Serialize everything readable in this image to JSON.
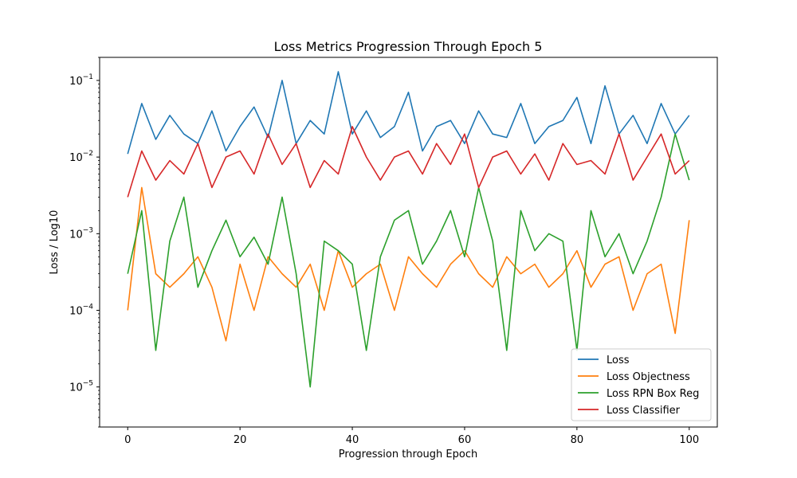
{
  "chart_data": {
    "type": "line",
    "title": "Loss Metrics Progression Through Epoch 5",
    "xlabel": "Progression through Epoch",
    "ylabel": "Loss / Log10",
    "yscale": "log",
    "xlim": [
      -5,
      105
    ],
    "ylim": [
      3e-06,
      0.2
    ],
    "grid": false,
    "legend_position": "lower-right",
    "xticks": [
      0,
      20,
      40,
      60,
      80,
      100
    ],
    "xtick_labels": [
      "0",
      "20",
      "40",
      "60",
      "80",
      "100"
    ],
    "yticks": [
      1e-05,
      0.0001,
      0.001,
      0.01,
      0.1
    ],
    "ytick_labels": [
      {
        "base": "10",
        "exp": "−5"
      },
      {
        "base": "10",
        "exp": "−4"
      },
      {
        "base": "10",
        "exp": "−3"
      },
      {
        "base": "10",
        "exp": "−2"
      },
      {
        "base": "10",
        "exp": "−1"
      }
    ],
    "x": [
      0,
      2.5,
      5,
      7.5,
      10,
      12.5,
      15,
      17.5,
      20,
      22.5,
      25,
      27.5,
      30,
      32.5,
      35,
      37.5,
      40,
      42.5,
      45,
      47.5,
      50,
      52.5,
      55,
      57.5,
      60,
      62.5,
      65,
      67.5,
      70,
      72.5,
      75,
      77.5,
      80,
      82.5,
      85,
      87.5,
      90,
      92.5,
      95,
      97.5,
      100
    ],
    "series": [
      {
        "name": "Loss",
        "color": "#1f77b4",
        "values": [
          0.011,
          0.05,
          0.017,
          0.035,
          0.02,
          0.015,
          0.04,
          0.012,
          0.025,
          0.045,
          0.018,
          0.1,
          0.015,
          0.03,
          0.02,
          0.13,
          0.02,
          0.04,
          0.018,
          0.025,
          0.07,
          0.012,
          0.025,
          0.03,
          0.015,
          0.04,
          0.02,
          0.018,
          0.05,
          0.015,
          0.025,
          0.03,
          0.06,
          0.015,
          0.085,
          0.02,
          0.035,
          0.015,
          0.05,
          0.02,
          0.035
        ]
      },
      {
        "name": "Loss Objectness",
        "color": "#ff7f0e",
        "values": [
          0.0001,
          0.004,
          0.0003,
          0.0002,
          0.0003,
          0.0005,
          0.0002,
          4e-05,
          0.0004,
          0.0001,
          0.0005,
          0.0003,
          0.0002,
          0.0004,
          0.0001,
          0.0006,
          0.0002,
          0.0003,
          0.0004,
          0.0001,
          0.0005,
          0.0003,
          0.0002,
          0.0004,
          0.0006,
          0.0003,
          0.0002,
          0.0005,
          0.0003,
          0.0004,
          0.0002,
          0.0003,
          0.0006,
          0.0002,
          0.0004,
          0.0005,
          0.0001,
          0.0003,
          0.0004,
          5e-05,
          0.0015
        ]
      },
      {
        "name": "Loss RPN Box Reg",
        "color": "#2ca02c",
        "values": [
          0.0003,
          0.002,
          3e-05,
          0.0008,
          0.003,
          0.0002,
          0.0006,
          0.0015,
          0.0005,
          0.0009,
          0.0004,
          0.003,
          0.0003,
          1e-05,
          0.0008,
          0.0006,
          0.0004,
          3e-05,
          0.0005,
          0.0015,
          0.002,
          0.0004,
          0.0008,
          0.002,
          0.0005,
          0.004,
          0.0008,
          3e-05,
          0.002,
          0.0006,
          0.001,
          0.0008,
          3e-05,
          0.002,
          0.0005,
          0.001,
          0.0003,
          0.0008,
          0.003,
          0.02,
          0.005
        ]
      },
      {
        "name": "Loss Classifier",
        "color": "#d62728",
        "values": [
          0.003,
          0.012,
          0.005,
          0.009,
          0.006,
          0.015,
          0.004,
          0.01,
          0.012,
          0.006,
          0.02,
          0.008,
          0.015,
          0.004,
          0.009,
          0.006,
          0.025,
          0.01,
          0.005,
          0.01,
          0.012,
          0.006,
          0.015,
          0.008,
          0.02,
          0.004,
          0.01,
          0.012,
          0.006,
          0.011,
          0.005,
          0.015,
          0.008,
          0.009,
          0.006,
          0.02,
          0.005,
          0.01,
          0.02,
          0.006,
          0.009
        ]
      }
    ]
  }
}
